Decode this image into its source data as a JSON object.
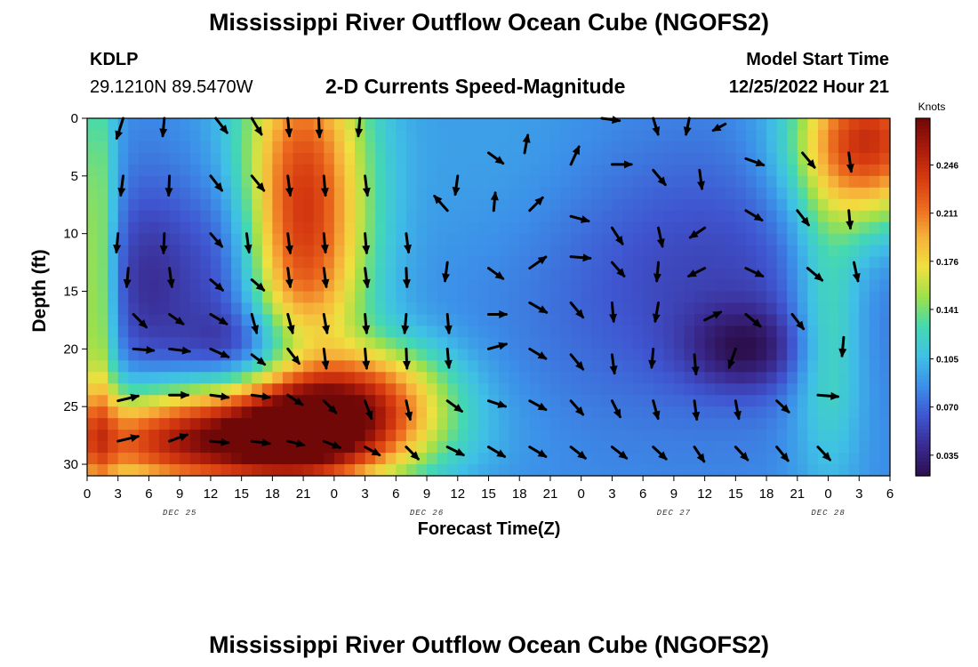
{
  "header": {
    "title": "Mississippi River Outflow Ocean Cube (NGOFS2)",
    "station": "KDLP",
    "coords": "29.1210N  89.5470W",
    "subtitle": "2-D Currents Speed-Magnitude",
    "model_start_label": "Model Start Time",
    "model_start_time": "12/25/2022 Hour 21"
  },
  "footer": {
    "title": "Mississippi River Outflow Ocean Cube (NGOFS2)"
  },
  "chart_data": {
    "type": "heatmap",
    "title": "2-D Currents Speed-Magnitude",
    "xlabel": "Forecast Time(Z)",
    "ylabel": "Depth (ft)",
    "x_unit": "hours since Dec 25 00Z",
    "xlim": [
      0,
      78
    ],
    "ylim": [
      31,
      0
    ],
    "y_ticks": [
      "0",
      "5",
      "10",
      "15",
      "20",
      "25",
      "30"
    ],
    "y_tick_values": [
      0,
      5,
      10,
      15,
      20,
      25,
      30
    ],
    "x_tick_labels": [
      "0",
      "3",
      "6",
      "9",
      "12",
      "15",
      "18",
      "21",
      "0",
      "3",
      "6",
      "9",
      "12",
      "15",
      "18",
      "21",
      "0",
      "3",
      "6",
      "9",
      "12",
      "15",
      "18",
      "21",
      "0",
      "3",
      "6"
    ],
    "date_labels": [
      {
        "label": "DEC 25",
        "hour": 9
      },
      {
        "label": "DEC 26",
        "hour": 33
      },
      {
        "label": "DEC 27",
        "hour": 57
      },
      {
        "label": "DEC 28",
        "hour": 72
      }
    ],
    "colorbar": {
      "label": "Knots",
      "ticks": [
        "0.246",
        "0.211",
        "0.176",
        "0.141",
        "0.105",
        "0.070",
        "0.035"
      ],
      "tick_values": [
        0.246,
        0.211,
        0.176,
        0.141,
        0.105,
        0.07,
        0.035
      ],
      "range": [
        0.02,
        0.28
      ],
      "colors": [
        "#2c0f4e",
        "#3a2a90",
        "#3f55d0",
        "#3c8ee8",
        "#3fc0e6",
        "#44d9b0",
        "#9ee04a",
        "#f0e040",
        "#f6b23a",
        "#ec6a1e",
        "#d53a10",
        "#a91a0a",
        "#700808"
      ]
    },
    "speed_field": {
      "base": 0.085,
      "blobs": [
        {
          "t": 6,
          "d": 14,
          "st": 3.5,
          "sd": 6,
          "a": -0.04
        },
        {
          "t": 14,
          "d": 13,
          "st": 3,
          "sd": 6,
          "a": -0.04
        },
        {
          "t": 17,
          "d": 20,
          "st": 5,
          "sd": 2.5,
          "a": -0.05
        },
        {
          "t": 12,
          "d": 28,
          "st": 11,
          "sd": 3.2,
          "a": 0.175
        },
        {
          "t": 24,
          "d": 26.5,
          "st": 7,
          "sd": 3.5,
          "a": 0.1
        },
        {
          "t": 21,
          "d": 8,
          "st": 4.5,
          "sd": 12,
          "a": 0.155
        },
        {
          "t": 29,
          "d": 23,
          "st": 5,
          "sd": 3,
          "a": 0.06
        },
        {
          "t": 1,
          "d": 15,
          "st": 1.3,
          "sd": 15,
          "a": 0.08
        },
        {
          "t": 60,
          "d": 14,
          "st": 12,
          "sd": 8,
          "a": -0.03
        },
        {
          "t": 64,
          "d": 20,
          "st": 4,
          "sd": 2.5,
          "a": -0.045
        },
        {
          "t": 76,
          "d": 2,
          "st": 5,
          "sd": 5,
          "a": 0.16
        },
        {
          "t": 72,
          "d": 18,
          "st": 2.5,
          "sd": 9,
          "a": 0.055
        },
        {
          "t": 40,
          "d": 4,
          "st": 8,
          "sd": 8,
          "a": 0.01
        }
      ]
    },
    "vectors": [
      {
        "t": 3.5,
        "d": 0,
        "dt": -0.8,
        "dd": 2.5
      },
      {
        "t": 7.5,
        "d": 0,
        "dt": -0.2,
        "dd": 2.2
      },
      {
        "t": 12.5,
        "d": 0,
        "dt": 1.4,
        "dd": 1.8
      },
      {
        "t": 16,
        "d": 0,
        "dt": 1.2,
        "dd": 2.0
      },
      {
        "t": 19.5,
        "d": 0,
        "dt": 0.2,
        "dd": 2.2
      },
      {
        "t": 22.5,
        "d": 0,
        "dt": 0.1,
        "dd": 2.3
      },
      {
        "t": 26.5,
        "d": 0,
        "dt": -0.2,
        "dd": 2.2
      },
      {
        "t": 50,
        "d": 0,
        "dt": 2.2,
        "dd": 0.3
      },
      {
        "t": 55,
        "d": 0,
        "dt": 0.6,
        "dd": 2.0
      },
      {
        "t": 58.5,
        "d": 0,
        "dt": -0.4,
        "dd": 2.0
      },
      {
        "t": 62,
        "d": 0.5,
        "dt": -1.5,
        "dd": 0.8
      },
      {
        "t": 3.5,
        "d": 5,
        "dt": -0.3,
        "dd": 2.4
      },
      {
        "t": 8,
        "d": 5,
        "dt": -0.1,
        "dd": 2.4
      },
      {
        "t": 12,
        "d": 5,
        "dt": 1.4,
        "dd": 1.8
      },
      {
        "t": 16,
        "d": 5,
        "dt": 1.5,
        "dd": 1.8
      },
      {
        "t": 19.5,
        "d": 5,
        "dt": 0.3,
        "dd": 2.4
      },
      {
        "t": 23,
        "d": 5,
        "dt": 0.2,
        "dd": 2.4
      },
      {
        "t": 27,
        "d": 5,
        "dt": 0.3,
        "dd": 2.4
      },
      {
        "t": 36,
        "d": 5,
        "dt": -0.3,
        "dd": 2.3
      },
      {
        "t": 39,
        "d": 3,
        "dt": 1.8,
        "dd": 1.3
      },
      {
        "t": 42.5,
        "d": 3,
        "dt": 0.4,
        "dd": -2.2
      },
      {
        "t": 47,
        "d": 4,
        "dt": 1.0,
        "dd": -2.2
      },
      {
        "t": 51,
        "d": 4,
        "dt": 2.4,
        "dd": 0.0
      },
      {
        "t": 55,
        "d": 4.5,
        "dt": 1.5,
        "dd": 1.8
      },
      {
        "t": 59.5,
        "d": 4.5,
        "dt": 0.3,
        "dd": 2.3
      },
      {
        "t": 64,
        "d": 3.5,
        "dt": 2.2,
        "dd": 0.8
      },
      {
        "t": 69.5,
        "d": 3,
        "dt": 1.5,
        "dd": 1.8
      },
      {
        "t": 74,
        "d": 3,
        "dt": 0.3,
        "dd": 2.3
      },
      {
        "t": 3,
        "d": 10,
        "dt": -0.2,
        "dd": 2.3
      },
      {
        "t": 7.5,
        "d": 10,
        "dt": -0.1,
        "dd": 2.4
      },
      {
        "t": 12,
        "d": 10,
        "dt": 1.4,
        "dd": 1.6
      },
      {
        "t": 15.5,
        "d": 10,
        "dt": 0.3,
        "dd": 2.3
      },
      {
        "t": 19.5,
        "d": 10,
        "dt": 0.3,
        "dd": 2.4
      },
      {
        "t": 23,
        "d": 10,
        "dt": 0.2,
        "dd": 2.3
      },
      {
        "t": 27,
        "d": 10,
        "dt": 0.2,
        "dd": 2.4
      },
      {
        "t": 31,
        "d": 10,
        "dt": 0.3,
        "dd": 2.3
      },
      {
        "t": 35,
        "d": 8,
        "dt": -1.6,
        "dd": -1.8
      },
      {
        "t": 39.5,
        "d": 8,
        "dt": 0.2,
        "dd": -2.2
      },
      {
        "t": 43,
        "d": 8,
        "dt": 1.6,
        "dd": -1.6
      },
      {
        "t": 47,
        "d": 8.5,
        "dt": 2.2,
        "dd": 0.6
      },
      {
        "t": 51,
        "d": 9.5,
        "dt": 1.3,
        "dd": 2.0
      },
      {
        "t": 55.5,
        "d": 9.5,
        "dt": 0.5,
        "dd": 2.3
      },
      {
        "t": 60,
        "d": 9.5,
        "dt": -1.8,
        "dd": 1.2
      },
      {
        "t": 64,
        "d": 8,
        "dt": 2.0,
        "dd": 1.2
      },
      {
        "t": 69,
        "d": 8,
        "dt": 1.4,
        "dd": 1.8
      },
      {
        "t": 74,
        "d": 8,
        "dt": 0.2,
        "dd": 2.2
      },
      {
        "t": 4,
        "d": 13,
        "dt": -0.2,
        "dd": 2.3
      },
      {
        "t": 8,
        "d": 13,
        "dt": 0.3,
        "dd": 2.3
      },
      {
        "t": 12,
        "d": 14,
        "dt": 1.5,
        "dd": 1.3
      },
      {
        "t": 16,
        "d": 14,
        "dt": 1.5,
        "dd": 1.3
      },
      {
        "t": 19.5,
        "d": 13,
        "dt": 0.3,
        "dd": 2.3
      },
      {
        "t": 23,
        "d": 13,
        "dt": 0.3,
        "dd": 2.3
      },
      {
        "t": 27,
        "d": 13,
        "dt": 0.3,
        "dd": 2.3
      },
      {
        "t": 31,
        "d": 13,
        "dt": 0.1,
        "dd": 2.3
      },
      {
        "t": 35,
        "d": 12.5,
        "dt": -0.3,
        "dd": 2.3
      },
      {
        "t": 39,
        "d": 13,
        "dt": 1.8,
        "dd": 1.3
      },
      {
        "t": 43,
        "d": 13,
        "dt": 2.0,
        "dd": -1.4
      },
      {
        "t": 47,
        "d": 12,
        "dt": 2.4,
        "dd": 0.2
      },
      {
        "t": 51,
        "d": 12.5,
        "dt": 1.5,
        "dd": 1.7
      },
      {
        "t": 55.5,
        "d": 12.5,
        "dt": -0.2,
        "dd": 2.3
      },
      {
        "t": 60,
        "d": 13,
        "dt": -2.0,
        "dd": 1.0
      },
      {
        "t": 64,
        "d": 13,
        "dt": 2.1,
        "dd": 1.0
      },
      {
        "t": 70,
        "d": 13,
        "dt": 1.8,
        "dd": 1.5
      },
      {
        "t": 74.5,
        "d": 12.5,
        "dt": 0.5,
        "dd": 2.3
      },
      {
        "t": 4.5,
        "d": 17,
        "dt": 1.6,
        "dd": 1.6
      },
      {
        "t": 8,
        "d": 17,
        "dt": 1.7,
        "dd": 1.2
      },
      {
        "t": 12,
        "d": 17,
        "dt": 2.0,
        "dd": 1.2
      },
      {
        "t": 16,
        "d": 17,
        "dt": 0.6,
        "dd": 2.3
      },
      {
        "t": 19.5,
        "d": 17,
        "dt": 0.6,
        "dd": 2.3
      },
      {
        "t": 23,
        "d": 17,
        "dt": 0.4,
        "dd": 2.3
      },
      {
        "t": 27,
        "d": 17,
        "dt": 0.2,
        "dd": 2.3
      },
      {
        "t": 31,
        "d": 17,
        "dt": -0.2,
        "dd": 2.3
      },
      {
        "t": 35,
        "d": 17,
        "dt": 0.2,
        "dd": 2.3
      },
      {
        "t": 39,
        "d": 17,
        "dt": 2.2,
        "dd": 0.0
      },
      {
        "t": 43,
        "d": 16,
        "dt": 2.1,
        "dd": 1.2
      },
      {
        "t": 47,
        "d": 16,
        "dt": 1.5,
        "dd": 1.8
      },
      {
        "t": 51,
        "d": 16,
        "dt": 0.2,
        "dd": 2.3
      },
      {
        "t": 55.5,
        "d": 16,
        "dt": -0.4,
        "dd": 2.3
      },
      {
        "t": 60,
        "d": 17.5,
        "dt": 2.0,
        "dd": -1.0
      },
      {
        "t": 64,
        "d": 17,
        "dt": 1.8,
        "dd": 1.5
      },
      {
        "t": 68.5,
        "d": 17,
        "dt": 1.4,
        "dd": 1.8
      },
      {
        "t": 73.5,
        "d": 19,
        "dt": -0.2,
        "dd": 2.3
      },
      {
        "t": 4.5,
        "d": 20,
        "dt": 2.5,
        "dd": 0.2
      },
      {
        "t": 8,
        "d": 20,
        "dt": 2.5,
        "dd": 0.3
      },
      {
        "t": 12,
        "d": 20,
        "dt": 2.2,
        "dd": 1.0
      },
      {
        "t": 16,
        "d": 20.5,
        "dt": 1.6,
        "dd": 1.2
      },
      {
        "t": 19.5,
        "d": 20,
        "dt": 1.4,
        "dd": 1.8
      },
      {
        "t": 23,
        "d": 20,
        "dt": 0.3,
        "dd": 2.4
      },
      {
        "t": 27,
        "d": 20,
        "dt": 0.2,
        "dd": 2.4
      },
      {
        "t": 31,
        "d": 20,
        "dt": 0.1,
        "dd": 2.4
      },
      {
        "t": 35,
        "d": 20,
        "dt": 0.2,
        "dd": 2.3
      },
      {
        "t": 39,
        "d": 20,
        "dt": 2.2,
        "dd": -0.6
      },
      {
        "t": 43,
        "d": 20,
        "dt": 2.0,
        "dd": 1.2
      },
      {
        "t": 47,
        "d": 20.5,
        "dt": 1.5,
        "dd": 1.8
      },
      {
        "t": 51,
        "d": 20.5,
        "dt": 0.3,
        "dd": 2.3
      },
      {
        "t": 55,
        "d": 20,
        "dt": -0.2,
        "dd": 2.3
      },
      {
        "t": 59,
        "d": 20.5,
        "dt": 0.2,
        "dd": 2.4
      },
      {
        "t": 63,
        "d": 20,
        "dt": -0.8,
        "dd": 2.3
      },
      {
        "t": 3,
        "d": 24.5,
        "dt": 2.5,
        "dd": -0.6
      },
      {
        "t": 8,
        "d": 24,
        "dt": 2.3,
        "dd": 0.0
      },
      {
        "t": 12,
        "d": 24,
        "dt": 2.2,
        "dd": 0.3
      },
      {
        "t": 16,
        "d": 24,
        "dt": 2.2,
        "dd": 0.3
      },
      {
        "t": 19.5,
        "d": 24,
        "dt": 1.8,
        "dd": 1.2
      },
      {
        "t": 23,
        "d": 24.5,
        "dt": 1.5,
        "dd": 1.5
      },
      {
        "t": 27,
        "d": 24.5,
        "dt": 0.8,
        "dd": 2.2
      },
      {
        "t": 31,
        "d": 24.5,
        "dt": 0.5,
        "dd": 2.3
      },
      {
        "t": 35,
        "d": 24.5,
        "dt": 1.8,
        "dd": 1.3
      },
      {
        "t": 39,
        "d": 24.5,
        "dt": 2.1,
        "dd": 0.7
      },
      {
        "t": 43,
        "d": 24.5,
        "dt": 2.0,
        "dd": 1.1
      },
      {
        "t": 47,
        "d": 24.5,
        "dt": 1.5,
        "dd": 1.7
      },
      {
        "t": 51,
        "d": 24.5,
        "dt": 1.0,
        "dd": 2.0
      },
      {
        "t": 55,
        "d": 24.5,
        "dt": 0.6,
        "dd": 2.2
      },
      {
        "t": 59,
        "d": 24.5,
        "dt": 0.3,
        "dd": 2.3
      },
      {
        "t": 63,
        "d": 24.5,
        "dt": 0.4,
        "dd": 2.2
      },
      {
        "t": 67,
        "d": 24.5,
        "dt": 1.5,
        "dd": 1.4
      },
      {
        "t": 71,
        "d": 24,
        "dt": 2.5,
        "dd": 0.2
      },
      {
        "t": 3,
        "d": 28,
        "dt": 2.5,
        "dd": -0.6
      },
      {
        "t": 8,
        "d": 28,
        "dt": 2.2,
        "dd": -0.8
      },
      {
        "t": 12,
        "d": 28,
        "dt": 2.2,
        "dd": 0.2
      },
      {
        "t": 16,
        "d": 28,
        "dt": 2.2,
        "dd": 0.3
      },
      {
        "t": 19.5,
        "d": 28,
        "dt": 2.0,
        "dd": 0.5
      },
      {
        "t": 23,
        "d": 28,
        "dt": 2.0,
        "dd": 0.8
      },
      {
        "t": 27,
        "d": 28.5,
        "dt": 1.8,
        "dd": 1.0
      },
      {
        "t": 31,
        "d": 28.5,
        "dt": 1.5,
        "dd": 1.5
      },
      {
        "t": 35,
        "d": 28.5,
        "dt": 2.0,
        "dd": 1.0
      },
      {
        "t": 39,
        "d": 28.5,
        "dt": 2.0,
        "dd": 1.2
      },
      {
        "t": 43,
        "d": 28.5,
        "dt": 2.0,
        "dd": 1.2
      },
      {
        "t": 47,
        "d": 28.5,
        "dt": 1.8,
        "dd": 1.4
      },
      {
        "t": 51,
        "d": 28.5,
        "dt": 1.8,
        "dd": 1.4
      },
      {
        "t": 55,
        "d": 28.5,
        "dt": 1.6,
        "dd": 1.5
      },
      {
        "t": 59,
        "d": 28.5,
        "dt": 1.2,
        "dd": 1.8
      },
      {
        "t": 63,
        "d": 28.5,
        "dt": 1.5,
        "dd": 1.6
      },
      {
        "t": 67,
        "d": 28.5,
        "dt": 1.4,
        "dd": 1.7
      },
      {
        "t": 71,
        "d": 28.5,
        "dt": 1.5,
        "dd": 1.6
      }
    ]
  }
}
